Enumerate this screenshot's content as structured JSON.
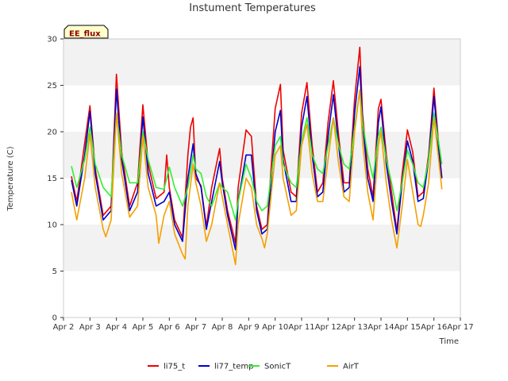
{
  "chart_data": {
    "type": "line",
    "title": "Instument Temperatures",
    "badge": "EE_flux",
    "xlabel": "Time",
    "ylabel": "Temperature (C)",
    "xlim": [
      2,
      17
    ],
    "ylim": [
      0,
      30
    ],
    "x_ticks": [
      {
        "value": 2,
        "label": "Apr 2"
      },
      {
        "value": 3,
        "label": "Apr 3"
      },
      {
        "value": 4,
        "label": "Apr 4"
      },
      {
        "value": 5,
        "label": "Apr 5"
      },
      {
        "value": 6,
        "label": "Apr 6"
      },
      {
        "value": 7,
        "label": "Apr 7"
      },
      {
        "value": 8,
        "label": "Apr 8"
      },
      {
        "value": 9,
        "label": "Apr 9"
      },
      {
        "value": 10,
        "label": "Apr 10"
      },
      {
        "value": 11,
        "label": "Apr 11"
      },
      {
        "value": 12,
        "label": "Apr 12"
      },
      {
        "value": 13,
        "label": "Apr 13"
      },
      {
        "value": 14,
        "label": "Apr 14"
      },
      {
        "value": 15,
        "label": "Apr 15"
      },
      {
        "value": 16,
        "label": "Apr 16"
      },
      {
        "value": 17,
        "label": "Apr 17"
      }
    ],
    "y_ticks": [
      0,
      5,
      10,
      15,
      20,
      25,
      30
    ],
    "grid": "horizontal bands",
    "legend_position": "bottom",
    "series": [
      {
        "name": "li75_t",
        "color": "#ee0000",
        "points": [
          [
            2.3,
            15.2
          ],
          [
            2.5,
            12.5
          ],
          [
            2.8,
            18.8
          ],
          [
            3.0,
            22.8
          ],
          [
            3.2,
            16.0
          ],
          [
            3.5,
            11.0
          ],
          [
            3.8,
            12.0
          ],
          [
            4.0,
            26.2
          ],
          [
            4.2,
            17.8
          ],
          [
            4.5,
            12.0
          ],
          [
            4.8,
            14.5
          ],
          [
            5.0,
            22.9
          ],
          [
            5.2,
            16.5
          ],
          [
            5.5,
            12.8
          ],
          [
            5.8,
            13.5
          ],
          [
            5.9,
            17.5
          ],
          [
            6.0,
            14.0
          ],
          [
            6.2,
            10.5
          ],
          [
            6.5,
            8.6
          ],
          [
            6.7,
            17.5
          ],
          [
            6.8,
            20.5
          ],
          [
            6.9,
            21.5
          ],
          [
            7.0,
            15.0
          ],
          [
            7.2,
            14.2
          ],
          [
            7.4,
            9.8
          ],
          [
            7.6,
            14.0
          ],
          [
            7.9,
            18.2
          ],
          [
            8.0,
            15.0
          ],
          [
            8.2,
            11.5
          ],
          [
            8.5,
            8.0
          ],
          [
            8.6,
            14.0
          ],
          [
            8.9,
            20.2
          ],
          [
            9.1,
            19.5
          ],
          [
            9.3,
            12.0
          ],
          [
            9.5,
            9.5
          ],
          [
            9.7,
            10.0
          ],
          [
            10.0,
            22.5
          ],
          [
            10.2,
            25.1
          ],
          [
            10.3,
            18.0
          ],
          [
            10.6,
            13.5
          ],
          [
            10.8,
            13.0
          ],
          [
            11.0,
            22.0
          ],
          [
            11.2,
            25.3
          ],
          [
            11.4,
            18.5
          ],
          [
            11.6,
            13.5
          ],
          [
            11.8,
            14.5
          ],
          [
            12.0,
            21.0
          ],
          [
            12.2,
            25.5
          ],
          [
            12.4,
            19.5
          ],
          [
            12.6,
            14.5
          ],
          [
            12.8,
            14.5
          ],
          [
            13.0,
            23.5
          ],
          [
            13.2,
            29.1
          ],
          [
            13.3,
            22.0
          ],
          [
            13.5,
            16.0
          ],
          [
            13.7,
            13.0
          ],
          [
            13.9,
            22.5
          ],
          [
            14.0,
            23.5
          ],
          [
            14.2,
            17.5
          ],
          [
            14.4,
            13.5
          ],
          [
            14.6,
            9.3
          ],
          [
            14.8,
            15.5
          ],
          [
            15.0,
            20.2
          ],
          [
            15.2,
            17.8
          ],
          [
            15.4,
            13.0
          ],
          [
            15.6,
            13.5
          ],
          [
            15.8,
            17.5
          ],
          [
            16.0,
            24.7
          ],
          [
            16.2,
            18.0
          ],
          [
            16.3,
            15.0
          ]
        ]
      },
      {
        "name": "li77_temp",
        "color": "#0000cc",
        "points": [
          [
            2.3,
            14.8
          ],
          [
            2.5,
            12.0
          ],
          [
            2.8,
            17.5
          ],
          [
            3.0,
            22.2
          ],
          [
            3.2,
            15.5
          ],
          [
            3.5,
            10.5
          ],
          [
            3.8,
            11.5
          ],
          [
            4.0,
            24.6
          ],
          [
            4.2,
            17.0
          ],
          [
            4.5,
            11.5
          ],
          [
            4.8,
            13.5
          ],
          [
            5.0,
            21.6
          ],
          [
            5.2,
            15.5
          ],
          [
            5.5,
            12.0
          ],
          [
            5.8,
            12.5
          ],
          [
            6.0,
            13.5
          ],
          [
            6.2,
            10.0
          ],
          [
            6.5,
            8.2
          ],
          [
            6.7,
            15.0
          ],
          [
            6.9,
            18.7
          ],
          [
            7.0,
            15.5
          ],
          [
            7.2,
            14.0
          ],
          [
            7.4,
            9.5
          ],
          [
            7.6,
            12.5
          ],
          [
            7.9,
            16.8
          ],
          [
            8.0,
            14.5
          ],
          [
            8.2,
            11.0
          ],
          [
            8.5,
            7.3
          ],
          [
            8.6,
            12.5
          ],
          [
            8.9,
            17.5
          ],
          [
            9.1,
            17.5
          ],
          [
            9.3,
            11.5
          ],
          [
            9.5,
            9.0
          ],
          [
            9.7,
            9.5
          ],
          [
            10.0,
            20.0
          ],
          [
            10.2,
            22.3
          ],
          [
            10.3,
            17.0
          ],
          [
            10.6,
            12.5
          ],
          [
            10.8,
            12.5
          ],
          [
            11.0,
            20.5
          ],
          [
            11.2,
            23.8
          ],
          [
            11.4,
            17.5
          ],
          [
            11.6,
            13.0
          ],
          [
            11.8,
            13.5
          ],
          [
            12.0,
            19.5
          ],
          [
            12.2,
            24.0
          ],
          [
            12.4,
            18.5
          ],
          [
            12.6,
            13.5
          ],
          [
            12.8,
            14.0
          ],
          [
            13.0,
            22.0
          ],
          [
            13.2,
            27.0
          ],
          [
            13.3,
            21.0
          ],
          [
            13.5,
            15.0
          ],
          [
            13.7,
            12.5
          ],
          [
            13.9,
            21.0
          ],
          [
            14.0,
            22.7
          ],
          [
            14.2,
            16.5
          ],
          [
            14.4,
            12.5
          ],
          [
            14.6,
            9.0
          ],
          [
            14.8,
            14.5
          ],
          [
            15.0,
            19.0
          ],
          [
            15.2,
            16.8
          ],
          [
            15.4,
            12.5
          ],
          [
            15.6,
            12.8
          ],
          [
            15.8,
            17.0
          ],
          [
            16.0,
            23.8
          ],
          [
            16.2,
            17.5
          ],
          [
            16.3,
            15.0
          ]
        ]
      },
      {
        "name": "SonicT",
        "color": "#33ee33",
        "points": [
          [
            2.3,
            16.3
          ],
          [
            2.5,
            14.0
          ],
          [
            2.8,
            17.0
          ],
          [
            3.0,
            20.5
          ],
          [
            3.2,
            16.5
          ],
          [
            3.5,
            14.0
          ],
          [
            3.8,
            13.0
          ],
          [
            4.0,
            22.0
          ],
          [
            4.2,
            17.5
          ],
          [
            4.5,
            14.5
          ],
          [
            4.8,
            14.5
          ],
          [
            5.0,
            20.0
          ],
          [
            5.2,
            17.0
          ],
          [
            5.5,
            14.0
          ],
          [
            5.8,
            13.8
          ],
          [
            6.0,
            16.2
          ],
          [
            6.2,
            14.0
          ],
          [
            6.5,
            12.0
          ],
          [
            6.7,
            14.0
          ],
          [
            6.9,
            17.5
          ],
          [
            7.0,
            16.0
          ],
          [
            7.2,
            15.5
          ],
          [
            7.4,
            13.0
          ],
          [
            7.6,
            12.0
          ],
          [
            7.9,
            14.5
          ],
          [
            8.0,
            14.0
          ],
          [
            8.2,
            13.5
          ],
          [
            8.5,
            10.5
          ],
          [
            8.6,
            12.5
          ],
          [
            8.9,
            16.5
          ],
          [
            9.1,
            15.0
          ],
          [
            9.3,
            12.5
          ],
          [
            9.5,
            11.5
          ],
          [
            9.7,
            12.0
          ],
          [
            10.0,
            18.5
          ],
          [
            10.2,
            19.5
          ],
          [
            10.3,
            16.5
          ],
          [
            10.6,
            14.5
          ],
          [
            10.8,
            14.0
          ],
          [
            11.0,
            19.0
          ],
          [
            11.2,
            21.5
          ],
          [
            11.4,
            17.5
          ],
          [
            11.6,
            16.0
          ],
          [
            11.8,
            15.5
          ],
          [
            12.0,
            18.5
          ],
          [
            12.2,
            21.5
          ],
          [
            12.4,
            18.5
          ],
          [
            12.6,
            16.5
          ],
          [
            12.8,
            16.0
          ],
          [
            13.0,
            20.5
          ],
          [
            13.2,
            24.5
          ],
          [
            13.3,
            21.0
          ],
          [
            13.5,
            17.5
          ],
          [
            13.7,
            15.0
          ],
          [
            13.9,
            19.5
          ],
          [
            14.0,
            20.5
          ],
          [
            14.2,
            17.0
          ],
          [
            14.4,
            14.5
          ],
          [
            14.6,
            11.5
          ],
          [
            14.8,
            14.5
          ],
          [
            15.0,
            18.0
          ],
          [
            15.2,
            16.5
          ],
          [
            15.4,
            14.5
          ],
          [
            15.6,
            14.0
          ],
          [
            15.8,
            17.0
          ],
          [
            16.0,
            22.0
          ],
          [
            16.2,
            18.5
          ],
          [
            16.3,
            16.5
          ]
        ]
      },
      {
        "name": "AirT",
        "color": "#f5a000",
        "points": [
          [
            2.3,
            13.5
          ],
          [
            2.5,
            10.5
          ],
          [
            2.8,
            15.0
          ],
          [
            3.0,
            19.8
          ],
          [
            3.2,
            14.0
          ],
          [
            3.5,
            9.5
          ],
          [
            3.6,
            8.7
          ],
          [
            3.8,
            10.5
          ],
          [
            4.0,
            22.0
          ],
          [
            4.2,
            15.5
          ],
          [
            4.5,
            10.8
          ],
          [
            4.8,
            12.0
          ],
          [
            5.0,
            19.5
          ],
          [
            5.2,
            14.0
          ],
          [
            5.5,
            11.0
          ],
          [
            5.6,
            8.0
          ],
          [
            5.8,
            11.0
          ],
          [
            6.0,
            12.5
          ],
          [
            6.2,
            9.0
          ],
          [
            6.5,
            6.8
          ],
          [
            6.6,
            6.3
          ],
          [
            6.7,
            12.0
          ],
          [
            6.9,
            16.5
          ],
          [
            7.0,
            14.5
          ],
          [
            7.2,
            12.0
          ],
          [
            7.4,
            8.2
          ],
          [
            7.6,
            10.0
          ],
          [
            7.9,
            14.5
          ],
          [
            8.0,
            13.0
          ],
          [
            8.2,
            10.0
          ],
          [
            8.5,
            5.7
          ],
          [
            8.6,
            10.0
          ],
          [
            8.9,
            15.0
          ],
          [
            9.1,
            14.0
          ],
          [
            9.3,
            10.0
          ],
          [
            9.5,
            8.5
          ],
          [
            9.6,
            7.5
          ],
          [
            9.7,
            9.0
          ],
          [
            10.0,
            17.5
          ],
          [
            10.2,
            18.5
          ],
          [
            10.3,
            15.0
          ],
          [
            10.6,
            11.0
          ],
          [
            10.8,
            11.5
          ],
          [
            11.0,
            18.5
          ],
          [
            11.2,
            20.8
          ],
          [
            11.4,
            15.5
          ],
          [
            11.6,
            12.5
          ],
          [
            11.8,
            12.5
          ],
          [
            12.0,
            17.0
          ],
          [
            12.2,
            21.5
          ],
          [
            12.4,
            16.5
          ],
          [
            12.6,
            13.0
          ],
          [
            12.8,
            12.5
          ],
          [
            13.0,
            20.0
          ],
          [
            13.2,
            24.5
          ],
          [
            13.3,
            19.0
          ],
          [
            13.5,
            13.5
          ],
          [
            13.7,
            10.5
          ],
          [
            13.9,
            18.5
          ],
          [
            14.0,
            20.0
          ],
          [
            14.2,
            14.5
          ],
          [
            14.4,
            10.5
          ],
          [
            14.6,
            7.5
          ],
          [
            14.8,
            12.0
          ],
          [
            15.0,
            17.0
          ],
          [
            15.2,
            13.5
          ],
          [
            15.4,
            10.0
          ],
          [
            15.5,
            9.8
          ],
          [
            15.6,
            11.0
          ],
          [
            15.8,
            14.5
          ],
          [
            16.0,
            21.5
          ],
          [
            16.2,
            16.5
          ],
          [
            16.3,
            13.8
          ]
        ]
      }
    ]
  }
}
